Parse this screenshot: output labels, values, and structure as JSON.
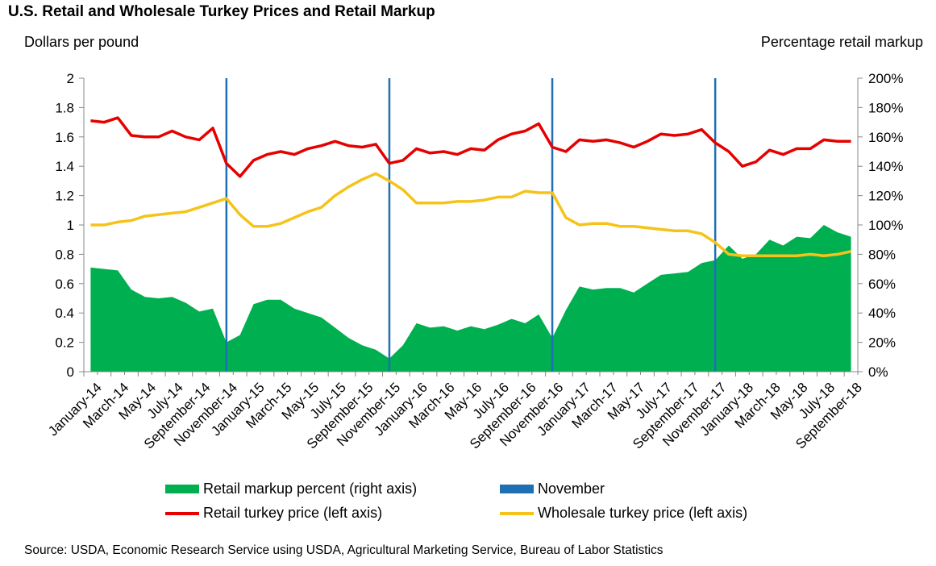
{
  "title": "U.S. Retail and Wholesale Turkey Prices and Retail Markup",
  "source": "Source: USDA, Economic Research Service using USDA, Agricultural Marketing Service, Bureau of Labor Statistics",
  "colors": {
    "markup": "#00b050",
    "retail": "#e60000",
    "wholesale": "#f5c31a",
    "november": "#1f6fb5",
    "axis": "#888888"
  },
  "chart_data": {
    "type": "line",
    "title": "U.S. Retail and Wholesale Turkey Prices and Retail Markup",
    "ylabel_left": "Dollars per pound",
    "ylabel_right": "Percentage retail markup",
    "ylim_left": [
      0,
      2
    ],
    "ylim_right": [
      0,
      200
    ],
    "yticks_left": [
      "0",
      "0.2",
      "0.4",
      "0.6",
      "0.8",
      "1",
      "1.2",
      "1.4",
      "1.6",
      "1.8",
      "2"
    ],
    "yticks_right": [
      "0%",
      "20%",
      "40%",
      "60%",
      "80%",
      "100%",
      "120%",
      "140%",
      "160%",
      "180%",
      "200%"
    ],
    "x_tick_labels": [
      "January-14",
      "March-14",
      "May-14",
      "July-14",
      "September-14",
      "November-14",
      "January-15",
      "March-15",
      "May-15",
      "July-15",
      "September-15",
      "November-15",
      "January-16",
      "March-16",
      "May-16",
      "July-16",
      "September-16",
      "November-16",
      "January-17",
      "March-17",
      "May-17",
      "July-17",
      "September-17",
      "November-17",
      "January-18",
      "March-18",
      "May-18",
      "July-18",
      "September-18"
    ],
    "november_month_indices": [
      10.5,
      22.5,
      34.5,
      46.5
    ],
    "series": [
      {
        "name": "Retail markup percent (right axis)",
        "type": "area",
        "axis": "right",
        "values": [
          71,
          70,
          69,
          56,
          51,
          50,
          51,
          47,
          41,
          43,
          20,
          25,
          46,
          49,
          49,
          43,
          40,
          37,
          30,
          23,
          18,
          15,
          9,
          18,
          33,
          30,
          31,
          28,
          31,
          29,
          32,
          36,
          33,
          39,
          23,
          42,
          58,
          56,
          57,
          57,
          54,
          60,
          66,
          67,
          68,
          74,
          76,
          86,
          77,
          80,
          90,
          86,
          92,
          91,
          100,
          95,
          92
        ]
      },
      {
        "name": "Retail turkey price (left axis)",
        "type": "line",
        "axis": "left",
        "values": [
          1.71,
          1.7,
          1.73,
          1.61,
          1.6,
          1.6,
          1.64,
          1.6,
          1.58,
          1.66,
          1.42,
          1.33,
          1.44,
          1.48,
          1.5,
          1.48,
          1.52,
          1.54,
          1.57,
          1.54,
          1.53,
          1.55,
          1.42,
          1.44,
          1.52,
          1.49,
          1.5,
          1.48,
          1.52,
          1.51,
          1.58,
          1.62,
          1.64,
          1.69,
          1.53,
          1.5,
          1.58,
          1.57,
          1.58,
          1.56,
          1.53,
          1.57,
          1.62,
          1.61,
          1.62,
          1.65,
          1.56,
          1.5,
          1.4,
          1.43,
          1.51,
          1.48,
          1.52,
          1.52,
          1.58,
          1.57,
          1.57
        ]
      },
      {
        "name": "Wholesale turkey price (left axis)",
        "type": "line",
        "axis": "left",
        "values": [
          1.0,
          1.0,
          1.02,
          1.03,
          1.06,
          1.07,
          1.08,
          1.09,
          1.12,
          1.15,
          1.18,
          1.07,
          0.99,
          0.99,
          1.01,
          1.05,
          1.09,
          1.12,
          1.2,
          1.26,
          1.31,
          1.35,
          1.3,
          1.24,
          1.15,
          1.15,
          1.15,
          1.16,
          1.16,
          1.17,
          1.19,
          1.19,
          1.23,
          1.22,
          1.22,
          1.05,
          1.0,
          1.01,
          1.01,
          0.99,
          0.99,
          0.98,
          0.97,
          0.96,
          0.96,
          0.94,
          0.88,
          0.8,
          0.79,
          0.79,
          0.79,
          0.79,
          0.79,
          0.8,
          0.79,
          0.8,
          0.82
        ]
      }
    ],
    "legend": {
      "position": "bottom",
      "markup": "Retail markup percent (right axis)",
      "november": "November",
      "retail": "Retail turkey price (left axis)",
      "wholesale": "Wholesale turkey price (left axis)"
    }
  }
}
